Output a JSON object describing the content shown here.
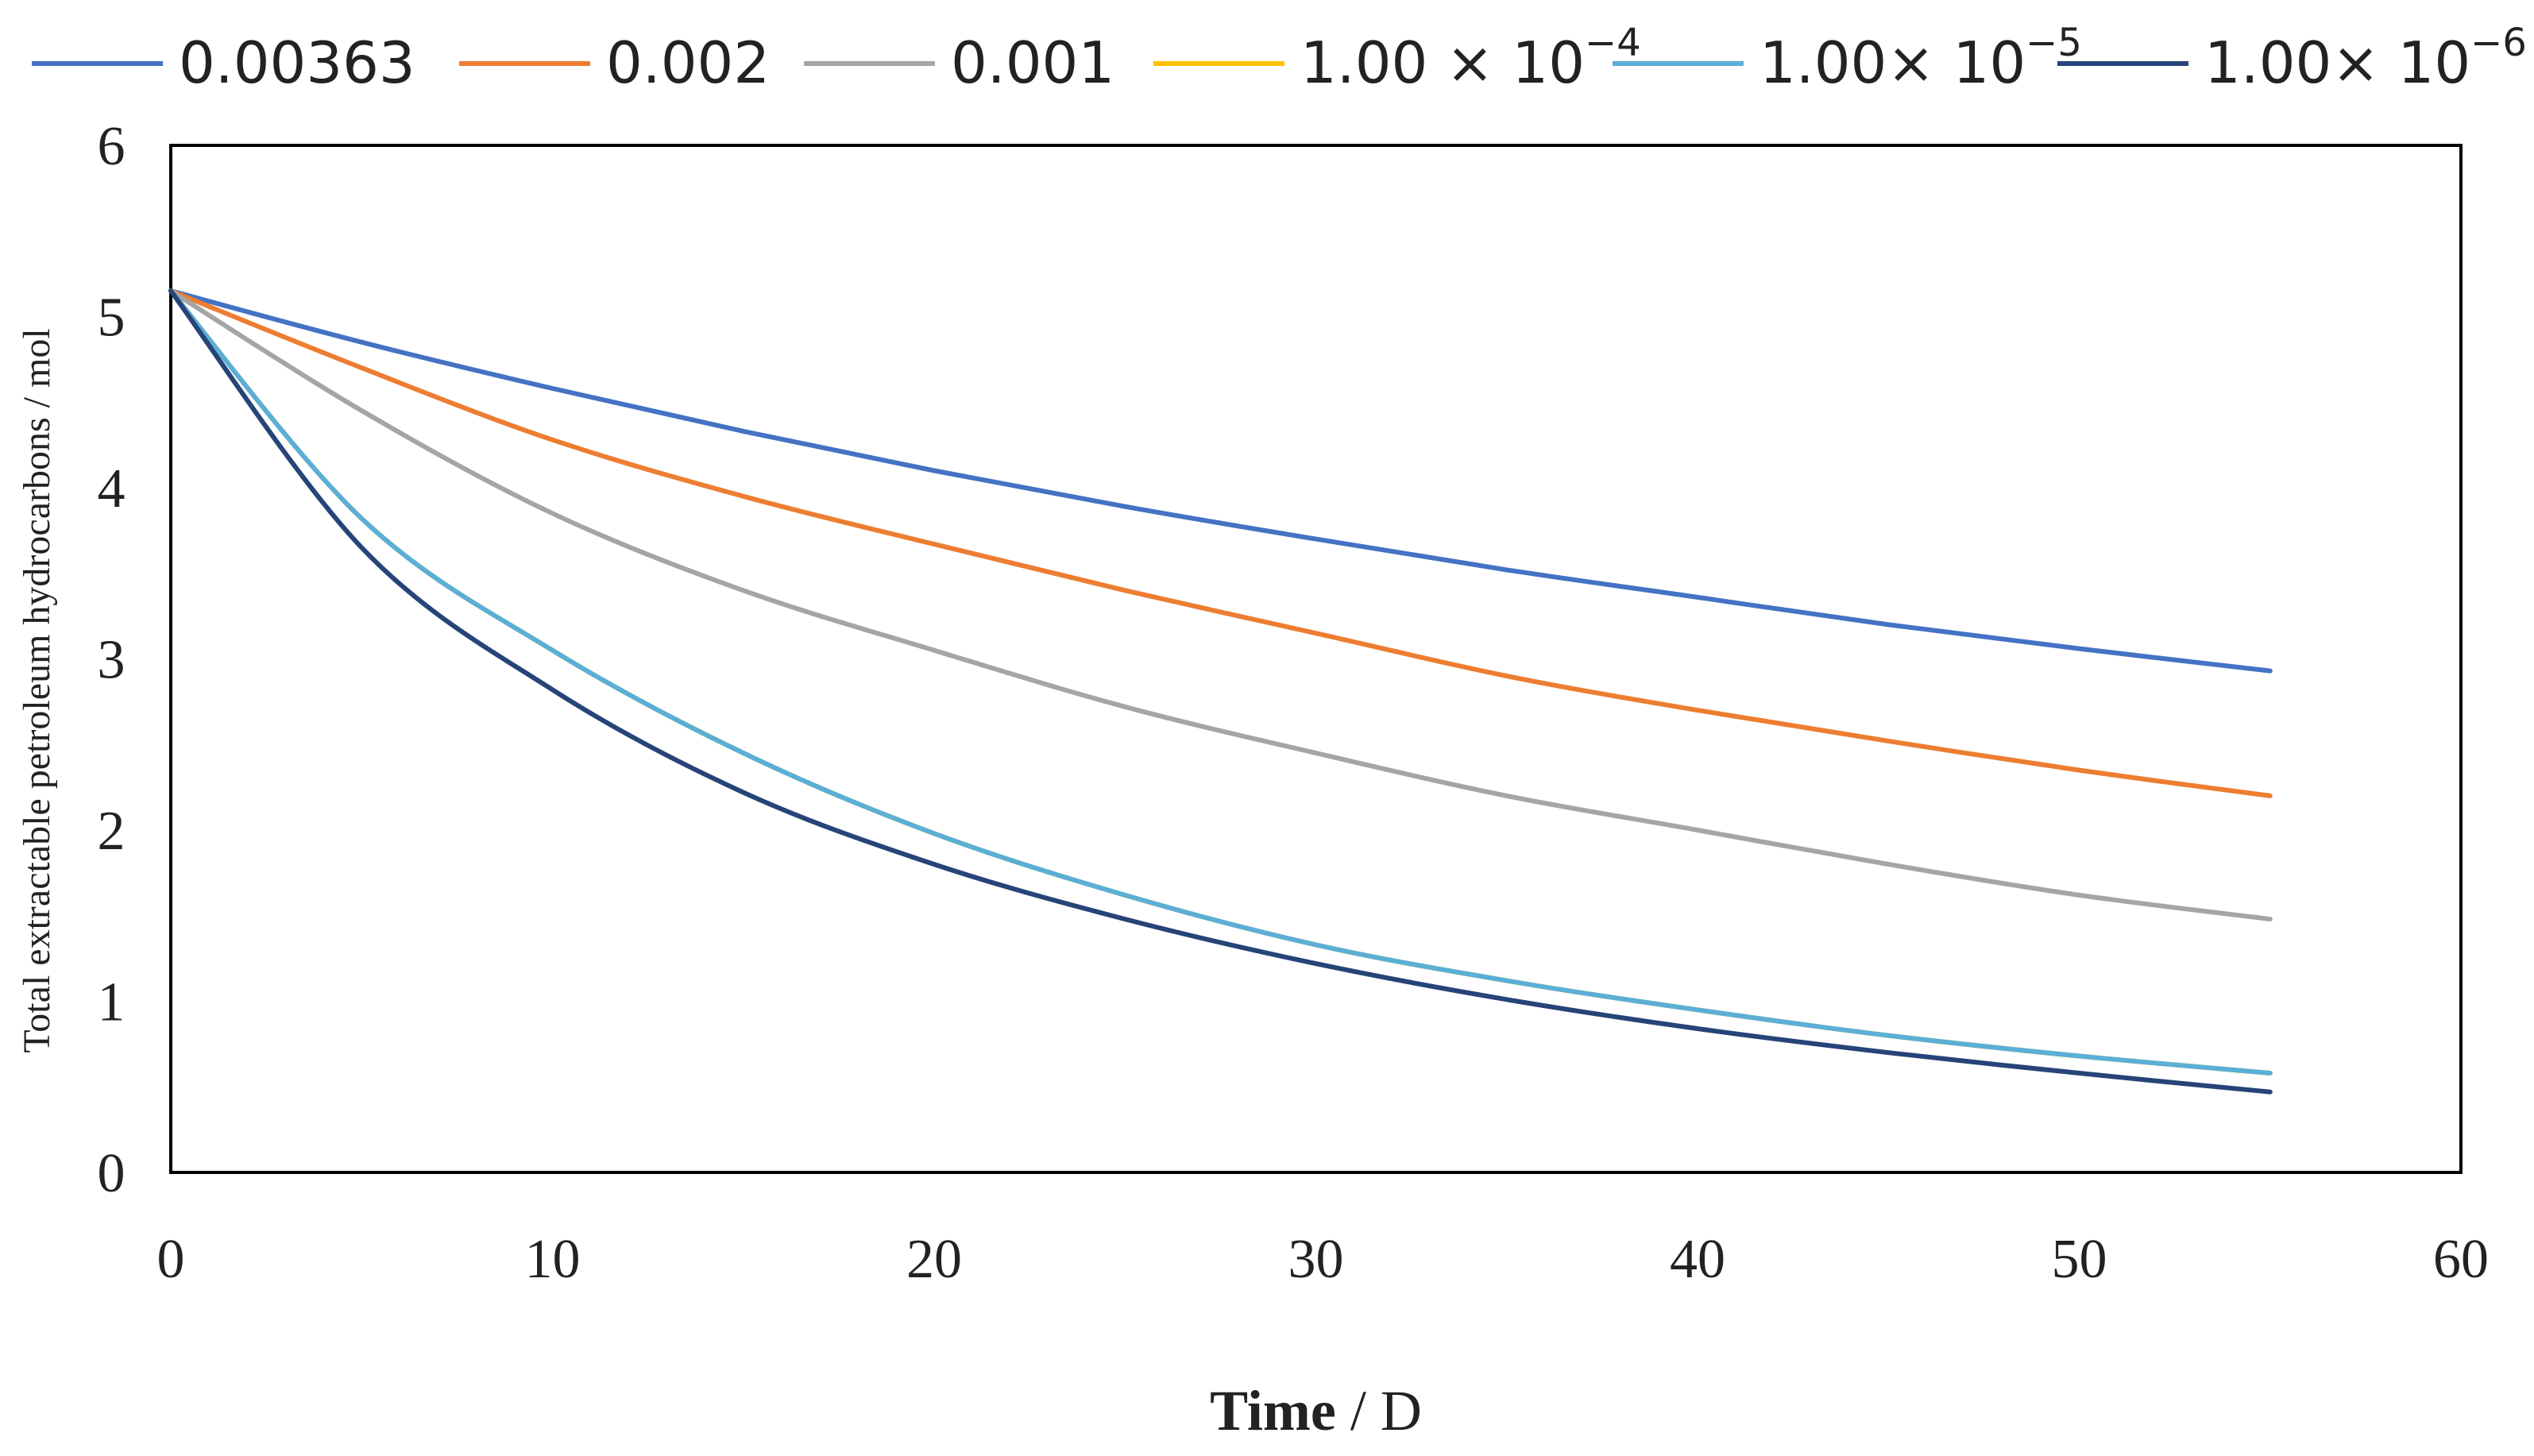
{
  "chart_data": {
    "type": "line",
    "title": "",
    "xlabel": {
      "bold": "Time",
      "rest": " / D"
    },
    "ylabel": "Total extractable petroleum hydrocarbons / mol",
    "xlim": [
      0,
      60
    ],
    "ylim": [
      0,
      6
    ],
    "xticks": [
      "0",
      "10",
      "20",
      "30",
      "40",
      "50",
      "60"
    ],
    "yticks": [
      "0",
      "1",
      "2",
      "3",
      "4",
      "5",
      "6"
    ],
    "grid": false,
    "legend_position": "top",
    "series": [
      {
        "name": "0.00363",
        "label": {
          "base": "0.00363",
          "exp": ""
        },
        "color": "#4472C4",
        "x": [
          0,
          5,
          10,
          15,
          20,
          25,
          30,
          35,
          40,
          45,
          50,
          55
        ],
        "y": [
          5.15,
          4.85,
          4.58,
          4.33,
          4.1,
          3.89,
          3.7,
          3.52,
          3.36,
          3.2,
          3.06,
          2.93
        ]
      },
      {
        "name": "0.002",
        "label": {
          "base": "0.002",
          "exp": ""
        },
        "color": "#ED7D31",
        "x": [
          0,
          5,
          10,
          15,
          20,
          25,
          30,
          35,
          40,
          45,
          50,
          55
        ],
        "y": [
          5.15,
          4.7,
          4.28,
          3.95,
          3.67,
          3.4,
          3.15,
          2.9,
          2.7,
          2.52,
          2.35,
          2.2
        ]
      },
      {
        "name": "0.001",
        "label": {
          "base": "0.001",
          "exp": ""
        },
        "color": "#A5A5A5",
        "x": [
          0,
          5,
          10,
          15,
          20,
          25,
          30,
          35,
          40,
          45,
          50,
          55
        ],
        "y": [
          5.15,
          4.45,
          3.85,
          3.4,
          3.05,
          2.72,
          2.45,
          2.2,
          2.0,
          1.8,
          1.62,
          1.48
        ]
      },
      {
        "name": "1.00 × 10^-4",
        "label": {
          "base": "1.00 × 10",
          "exp": "−4"
        },
        "color": "#FFC000",
        "x": [
          0,
          5,
          10,
          15,
          20,
          25,
          30,
          35,
          40,
          45,
          50,
          55
        ],
        "y": [
          5.15,
          3.82,
          3.05,
          2.45,
          1.98,
          1.62,
          1.33,
          1.12,
          0.95,
          0.8,
          0.68,
          0.58
        ]
      },
      {
        "name": "1.00× 10^-5",
        "label": {
          "base": "1.00× 10",
          "exp": "−5"
        },
        "color": "#5BAFD6",
        "x": [
          0,
          5,
          10,
          15,
          20,
          25,
          30,
          35,
          40,
          45,
          50,
          55
        ],
        "y": [
          5.15,
          3.82,
          3.05,
          2.45,
          1.98,
          1.62,
          1.33,
          1.12,
          0.95,
          0.8,
          0.68,
          0.58
        ]
      },
      {
        "name": "1.00× 10^-6",
        "label": {
          "base": "1.00× 10",
          "exp": "−6"
        },
        "color": "#264478",
        "x": [
          0,
          5,
          10,
          15,
          20,
          25,
          30,
          35,
          40,
          45,
          50,
          55
        ],
        "y": [
          5.15,
          3.65,
          2.82,
          2.22,
          1.8,
          1.48,
          1.22,
          1.01,
          0.84,
          0.7,
          0.58,
          0.47
        ]
      }
    ]
  }
}
